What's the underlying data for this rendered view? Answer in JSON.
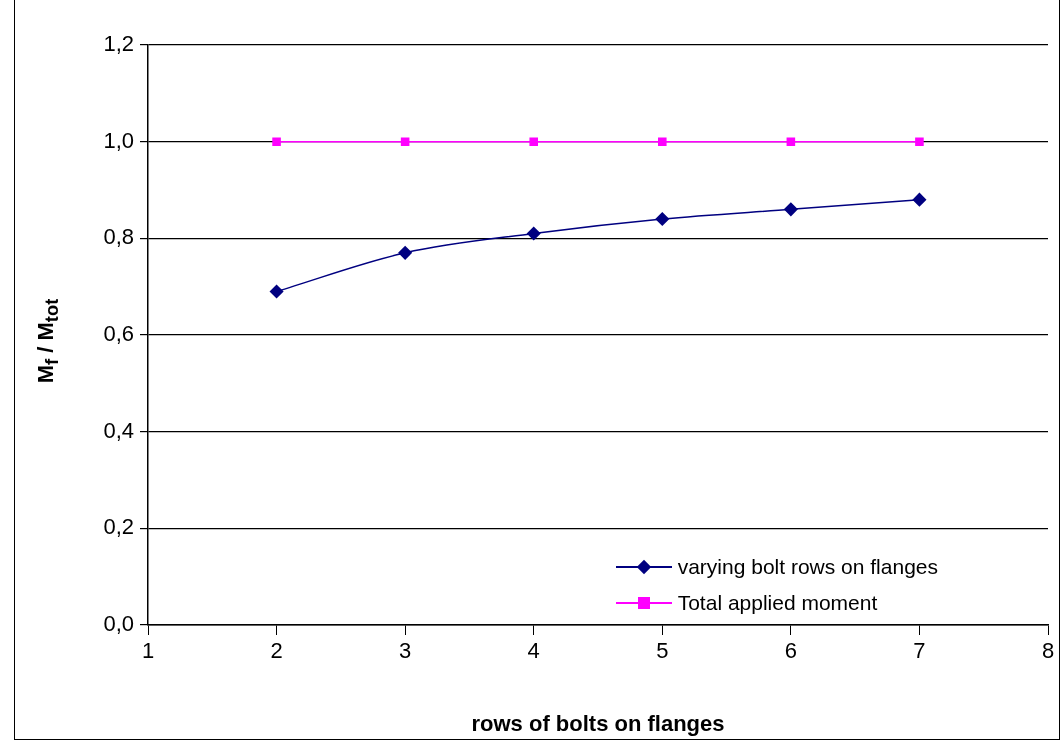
{
  "chart_data": {
    "type": "line",
    "xlabel": "rows of bolts on flanges",
    "ylabel": "M$_{f}$ / M$_{tot}$",
    "xlim": [
      1,
      8
    ],
    "xticks": [
      1,
      2,
      3,
      4,
      5,
      6,
      7,
      8
    ],
    "ylim": [
      0,
      1.2
    ],
    "yticks": [
      {
        "value": 0,
        "label": "0,0"
      },
      {
        "value": 0.2,
        "label": "0,2"
      },
      {
        "value": 0.4,
        "label": "0,4"
      },
      {
        "value": 0.6,
        "label": "0,6"
      },
      {
        "value": 0.8,
        "label": "0,8"
      },
      {
        "value": 1.0,
        "label": "1,0"
      },
      {
        "value": 1.2,
        "label": "1,2"
      }
    ],
    "grid": "y",
    "legend": "bottom right",
    "line_style": "solid",
    "series": [
      {
        "name": "varying bolt rows on flanges",
        "color": "#000080",
        "marker": "diamond",
        "x": [
          2,
          3,
          4,
          5,
          6,
          7
        ],
        "values": [
          0.69,
          0.77,
          0.81,
          0.84,
          0.86,
          0.88
        ]
      },
      {
        "name": "Total applied moment",
        "color": "#ff00ff",
        "marker": "square",
        "x": [
          2,
          3,
          4,
          5,
          6,
          7
        ],
        "values": [
          1.0,
          1.0,
          1.0,
          1.0,
          1.0,
          1.0
        ]
      }
    ]
  }
}
